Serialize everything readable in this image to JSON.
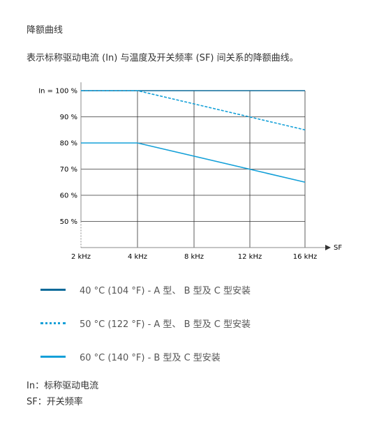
{
  "heading": "降额曲线",
  "intro": "表示标称驱动电流 (In) 与温度及开关频率 (SF) 间关系的降额曲线。",
  "colors": {
    "series_40": "#0b6a99",
    "series_50": "#14a0d8",
    "series_60": "#14a0d8",
    "grid": "#333333",
    "axis": "#888888"
  },
  "chart_data": {
    "type": "line",
    "xlabel": "SF",
    "ylabel": "",
    "x": [
      2,
      4,
      8,
      12,
      16
    ],
    "x_tick_labels": [
      "2 kHz",
      "4 kHz",
      "8 kHz",
      "12 kHz",
      "16 kHz"
    ],
    "y_ticks": [
      50,
      60,
      70,
      80,
      90,
      100
    ],
    "y_tick_labels": [
      "50 %",
      "60 %",
      "70 %",
      "80 %",
      "90 %",
      "In = 100 %"
    ],
    "ylim": [
      45,
      100
    ],
    "grid": true,
    "series": [
      {
        "name": "40 °C (104 °F) - A 型、 B 型及 C 型安装",
        "style": "solid",
        "points": [
          [
            2,
            100
          ],
          [
            16,
            100
          ]
        ]
      },
      {
        "name": "50 °C (122 °F) - A 型、 B 型及 C 型安装",
        "style": "dashed",
        "points": [
          [
            2,
            100
          ],
          [
            4,
            100
          ],
          [
            16,
            85
          ]
        ]
      },
      {
        "name": "60 °C (140 °F) - B 型及 C 型安装",
        "style": "solid",
        "points": [
          [
            2,
            80
          ],
          [
            4,
            80
          ],
          [
            16,
            65
          ]
        ]
      }
    ]
  },
  "notes": [
    "In：标称驱动电流",
    "SF：开关频率"
  ]
}
